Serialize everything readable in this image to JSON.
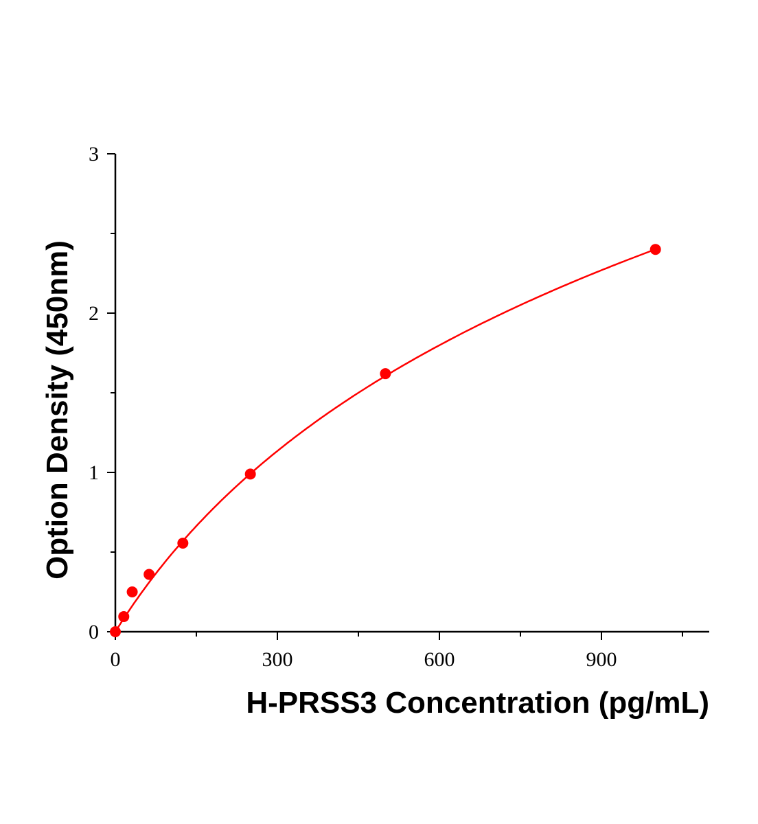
{
  "chart_data": {
    "type": "scatter",
    "title": "",
    "xlabel": "H-PRSS3 Concentration (pg/mL)",
    "ylabel": "Option Density (450nm)",
    "xlim": [
      0,
      1100
    ],
    "ylim": [
      0,
      3
    ],
    "x_ticks": [
      0,
      300,
      600,
      900
    ],
    "x_tick_labels": [
      "0",
      "300",
      "600",
      "900"
    ],
    "y_ticks": [
      0,
      1,
      2,
      3
    ],
    "y_tick_labels": [
      "0",
      "1",
      "2",
      "3"
    ],
    "grid": false,
    "series": [
      {
        "x": [
          0,
          15.6,
          31.25,
          62.5,
          125,
          250,
          500,
          1000
        ],
        "y": [
          0.0,
          0.095,
          0.25,
          0.36,
          0.556,
          0.99,
          1.62,
          2.4
        ],
        "color": "#ff0000",
        "marker": "circle",
        "fit_curve": true
      }
    ]
  }
}
